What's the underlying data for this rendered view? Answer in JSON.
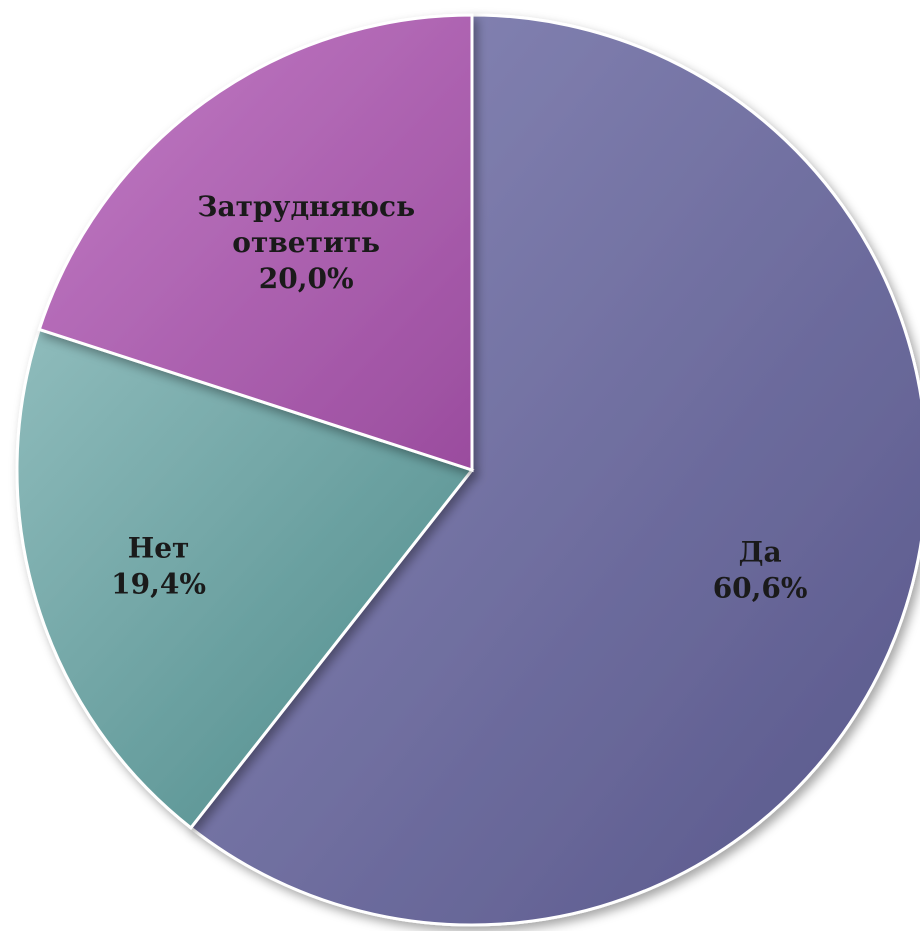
{
  "chart_data": {
    "type": "pie",
    "slices": [
      {
        "label": "Да",
        "value": 60.6,
        "value_label": "60,6%",
        "color": "#6e6d9f"
      },
      {
        "label": "Нет",
        "value": 19.4,
        "value_label": "19,4%",
        "color": "#6fa3a3"
      },
      {
        "label": "Затрудняюсь ответить",
        "value": 20.0,
        "value_label": "20,0%",
        "color": "#b063b3"
      }
    ],
    "start_angle_deg": 0,
    "direction": "clockwise",
    "legend": "none"
  }
}
